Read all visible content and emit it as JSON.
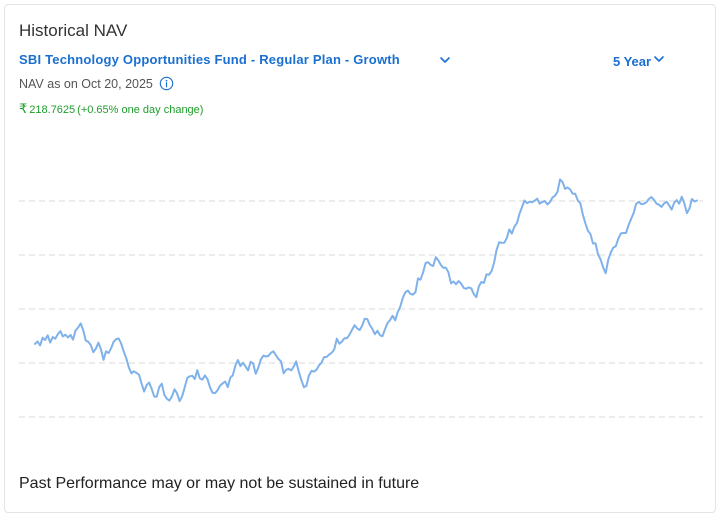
{
  "header": {
    "title": "Historical NAV",
    "fund_name": "SBI Technology Opportunities Fund - Regular Plan - Growth",
    "period": "5 Year",
    "nav_date_text": "NAV as on Oct 20, 2025",
    "currency_symbol": "₹",
    "nav_value": "218.7625",
    "nav_change_text": "(+0.65% one day change)"
  },
  "footer": {
    "disclaimer": "Past Performance may or may not be sustained in future"
  },
  "colors": {
    "accent": "#1a6fd1",
    "positive": "#1e9e2c",
    "line": "#7fb2ea",
    "grid": "#d9d9d9"
  },
  "icons": {
    "fund_dropdown": "chevron-down-icon",
    "period_dropdown": "chevron-down-icon",
    "info": "info-icon"
  },
  "chart_data": {
    "type": "line",
    "title": "",
    "xlabel": "",
    "ylabel": "",
    "axis_labels_shown": false,
    "grid": "horizontal dashed",
    "ylim": [
      90,
      240
    ],
    "series": [
      {
        "name": "",
        "values": [
          140.6,
          142.0,
          139.7,
          144.0,
          142.8,
          145.4,
          141.4,
          144.4,
          143.5,
          146.0,
          147.7,
          144.8,
          145.7,
          144.2,
          145.6,
          143.0,
          148.1,
          149.7,
          152.0,
          148.3,
          142.5,
          141.8,
          139.9,
          136.0,
          138.0,
          141.3,
          137.7,
          131.8,
          136.5,
          135.5,
          138.2,
          141.8,
          143.3,
          143.6,
          140.7,
          136.3,
          132.6,
          127.6,
          124.2,
          125.4,
          124.5,
          123.5,
          118.7,
          114.1,
          117.7,
          119.1,
          115.6,
          111.4,
          111.3,
          116.7,
          118.5,
          112.2,
          110.1,
          109.1,
          111.5,
          115.4,
          113.2,
          108.8,
          111.5,
          116.2,
          121.6,
          122.6,
          122.9,
          121.1,
          126.0,
          121.4,
          120.8,
          123.1,
          121.0,
          116.5,
          113.5,
          113.3,
          114.9,
          117.5,
          118.7,
          119.7,
          116.6,
          121.9,
          123.1,
          128.6,
          131.6,
          128.3,
          130.1,
          128.1,
          125.9,
          130.6,
          129.8,
          124.0,
          127.2,
          131.8,
          134.1,
          133.6,
          133.9,
          135.6,
          136.5,
          134.2,
          132.3,
          130.9,
          124.3,
          126.2,
          126.8,
          125.9,
          128.0,
          130.9,
          125.1,
          120.6,
          116.5,
          117.3,
          123.0,
          125.6,
          125.2,
          126.3,
          128.7,
          130.3,
          133.3,
          133.4,
          134.7,
          135.7,
          137.6,
          143.5,
          140.7,
          141.9,
          143.7,
          143.8,
          145.7,
          148.4,
          151.0,
          149.3,
          148.3,
          150.8,
          154.6,
          154.4,
          151.1,
          149.0,
          146.0,
          147.9,
          145.4,
          144.9,
          148.8,
          152.3,
          153.9,
          156.2,
          153.7,
          158.2,
          161.2,
          166.1,
          169.3,
          170.2,
          168.4,
          168.0,
          169.4,
          177.0,
          176.3,
          180.4,
          185.5,
          186.0,
          184.5,
          183.9,
          188.8,
          187.0,
          184.5,
          182.9,
          182.9,
          180.4,
          174.3,
          175.3,
          173.8,
          175.5,
          174.1,
          171.7,
          171.2,
          172.0,
          171.5,
          168.2,
          166.6,
          172.6,
          175.0,
          174.5,
          179.3,
          179.0,
          181.1,
          185.7,
          192.9,
          197.1,
          196.7,
          196.8,
          199.4,
          204.2,
          201.9,
          205.7,
          207.7,
          212.9,
          216.6,
          220.3,
          218.8,
          219.6,
          219.3,
          220.1,
          221.3,
          218.5,
          219.5,
          220.0,
          218.1,
          219.4,
          221.9,
          222.9,
          225.1,
          232.0,
          230.5,
          226.7,
          227.5,
          226.4,
          224.0,
          224.0,
          220.3,
          218.8,
          212.3,
          207.6,
          203.5,
          201.5,
          196.4,
          196.5,
          190.3,
          187.5,
          183.0,
          179.9,
          187.3,
          191.4,
          194.1,
          194.9,
          199.2,
          202.0,
          202.2,
          202.2,
          206.5,
          210.0,
          213.2,
          218.4,
          219.5,
          218.3,
          218.4,
          219.3,
          221.1,
          222.2,
          220.7,
          218.6,
          217.9,
          216.7,
          218.6,
          219.6,
          217.6,
          215.2,
          219.0,
          220.5,
          218.5,
          222.4,
          218.8,
          213.3,
          215.8,
          221.1,
          219.7,
          220.3
        ]
      }
    ]
  }
}
